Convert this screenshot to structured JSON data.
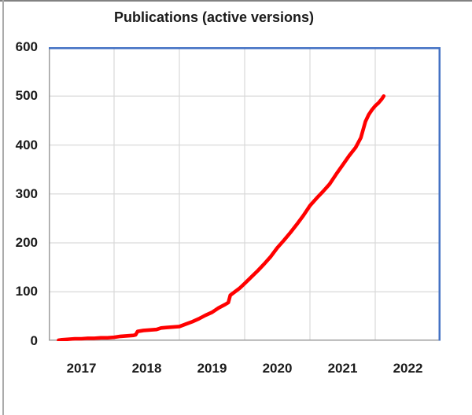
{
  "chart_data": {
    "type": "line",
    "title": "Publications (active versions)",
    "xlabel": "",
    "ylabel": "",
    "legend": "none",
    "grid": true,
    "x_axis": {
      "range": [
        2017,
        2023
      ],
      "tick_labels": [
        "2017",
        "2018",
        "2019",
        "2020",
        "2021",
        "2022"
      ],
      "tick_label_position": "centered-in-year-interval",
      "gridlines_at": [
        2018,
        2019,
        2020,
        2021,
        2022
      ]
    },
    "y_axis": {
      "range": [
        0,
        600
      ],
      "tick_labels": [
        "0",
        "100",
        "200",
        "300",
        "400",
        "500",
        "600"
      ],
      "tick_values": [
        0,
        100,
        200,
        300,
        400,
        500,
        600
      ],
      "gridline_values": [
        100,
        200,
        300,
        400,
        500
      ]
    },
    "series": [
      {
        "name": "Publications (active versions)",
        "color": "#FF0000",
        "points": [
          [
            2017.15,
            1
          ],
          [
            2017.2,
            2
          ],
          [
            2017.3,
            3
          ],
          [
            2017.4,
            4
          ],
          [
            2017.5,
            4
          ],
          [
            2017.6,
            5
          ],
          [
            2017.7,
            5
          ],
          [
            2017.8,
            6
          ],
          [
            2017.9,
            6
          ],
          [
            2018.0,
            7
          ],
          [
            2018.1,
            9
          ],
          [
            2018.2,
            10
          ],
          [
            2018.3,
            11
          ],
          [
            2018.33,
            12
          ],
          [
            2018.36,
            19
          ],
          [
            2018.45,
            21
          ],
          [
            2018.55,
            22
          ],
          [
            2018.65,
            23
          ],
          [
            2018.72,
            26
          ],
          [
            2018.8,
            27
          ],
          [
            2018.9,
            28
          ],
          [
            2019.0,
            29
          ],
          [
            2019.1,
            34
          ],
          [
            2019.2,
            39
          ],
          [
            2019.3,
            45
          ],
          [
            2019.4,
            52
          ],
          [
            2019.5,
            58
          ],
          [
            2019.6,
            67
          ],
          [
            2019.7,
            74
          ],
          [
            2019.75,
            78
          ],
          [
            2019.78,
            93
          ],
          [
            2019.85,
            100
          ],
          [
            2019.92,
            107
          ],
          [
            2020.0,
            117
          ],
          [
            2020.1,
            130
          ],
          [
            2020.2,
            143
          ],
          [
            2020.3,
            157
          ],
          [
            2020.4,
            172
          ],
          [
            2020.5,
            190
          ],
          [
            2020.6,
            205
          ],
          [
            2020.7,
            221
          ],
          [
            2020.8,
            238
          ],
          [
            2020.9,
            256
          ],
          [
            2021.0,
            276
          ],
          [
            2021.1,
            291
          ],
          [
            2021.2,
            305
          ],
          [
            2021.3,
            320
          ],
          [
            2021.4,
            340
          ],
          [
            2021.5,
            359
          ],
          [
            2021.6,
            378
          ],
          [
            2021.7,
            395
          ],
          [
            2021.78,
            415
          ],
          [
            2021.85,
            448
          ],
          [
            2021.9,
            462
          ],
          [
            2021.95,
            472
          ],
          [
            2022.0,
            480
          ],
          [
            2022.05,
            486
          ],
          [
            2022.1,
            494
          ],
          [
            2022.13,
            500
          ]
        ]
      }
    ]
  },
  "colors": {
    "line": "#FF0000",
    "plot_border_blue": "#4472C4",
    "axis_line_gray": "#9e9e9e",
    "gridline": "#D9D9D9",
    "text": "#1b1b1b",
    "frame_top": "#828282",
    "frame_left": "#ababab"
  }
}
